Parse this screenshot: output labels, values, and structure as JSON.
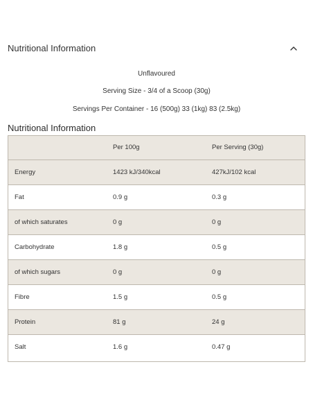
{
  "accordion": {
    "title": "Nutritional Information",
    "expanded_icon": "chevron-up-icon"
  },
  "details": {
    "flavour": "Unflavoured",
    "serving_size": "Serving Size - 3/4 of a Scoop (30g)",
    "servings_per_container": "Servings Per Container - 16 (500g) 33 (1kg) 83 (2.5kg)"
  },
  "section_title": "Nutritional Information",
  "colors": {
    "shaded_row": "#ebe7e0",
    "plain_row": "#ffffff",
    "border": "#bdb7ad"
  },
  "table": {
    "headers": [
      "",
      "Per 100g",
      "Per Serving (30g)"
    ],
    "rows": [
      {
        "label": "Energy",
        "per_100g": "1423 kJ/340kcal",
        "per_serving": "427kJ/102 kcal",
        "shaded": true
      },
      {
        "label": "Fat",
        "per_100g": "0.9 g",
        "per_serving": "0.3 g",
        "shaded": false
      },
      {
        "label": "of which saturates",
        "per_100g": "0 g",
        "per_serving": "0 g",
        "shaded": true
      },
      {
        "label": "Carbohydrate",
        "per_100g": "1.8 g",
        "per_serving": "0.5 g",
        "shaded": false
      },
      {
        "label": "of which sugars",
        "per_100g": "0 g",
        "per_serving": "0 g",
        "shaded": true
      },
      {
        "label": "Fibre",
        "per_100g": "1.5 g",
        "per_serving": "0.5 g",
        "shaded": false
      },
      {
        "label": "Protein",
        "per_100g": "81 g",
        "per_serving": "24 g",
        "shaded": true
      },
      {
        "label": "Salt",
        "per_100g": "1.6 g",
        "per_serving": "0.47 g",
        "shaded": false
      }
    ]
  }
}
